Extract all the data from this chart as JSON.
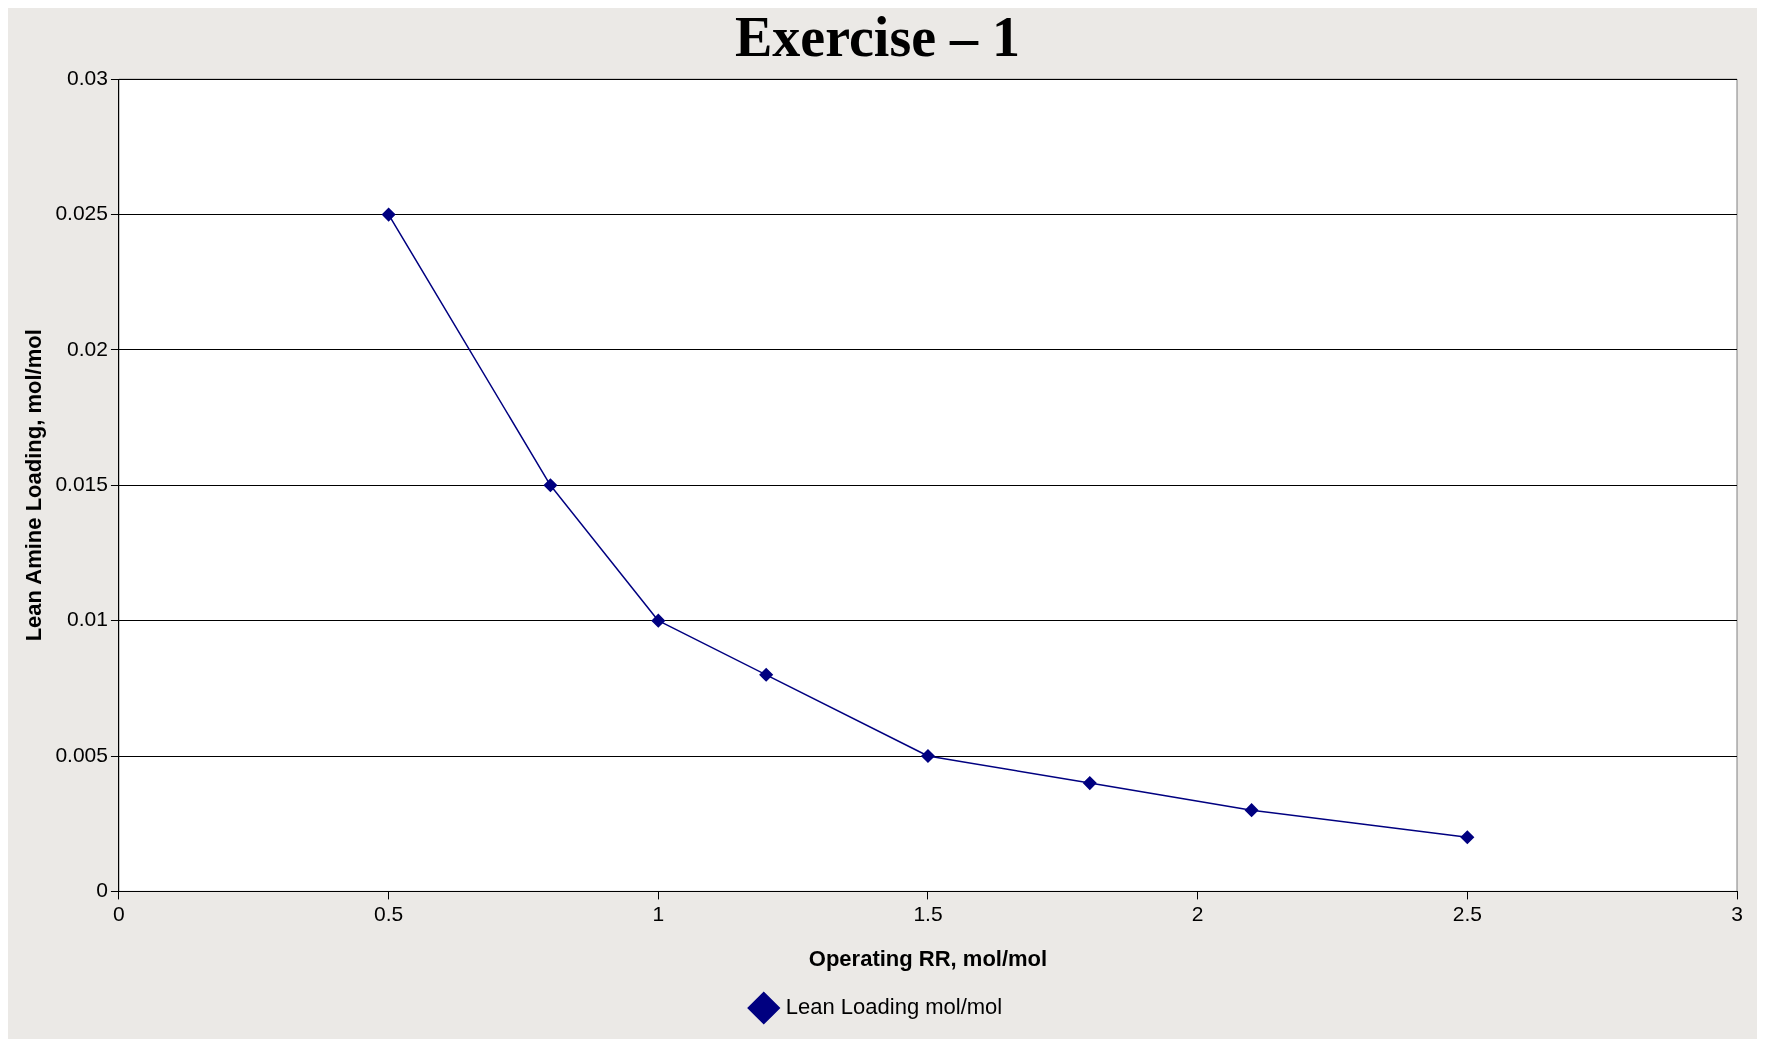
{
  "chart_data": {
    "type": "line",
    "title": "Exercise – 1",
    "xlabel": "Operating RR, mol/mol",
    "ylabel": "Lean Amine Loading, mol/mol",
    "x": [
      0.5,
      0.8,
      1,
      1.2,
      1.5,
      1.8,
      2.1,
      2.5
    ],
    "series": [
      {
        "name": "Lean Loading mol/mol",
        "color": "#000080",
        "values": [
          0.025,
          0.015,
          0.01,
          0.008,
          0.005,
          0.004,
          0.003,
          0.002
        ]
      }
    ],
    "xlim": [
      0,
      3
    ],
    "xticks": [
      0,
      0.5,
      1,
      1.5,
      2,
      2.5,
      3
    ],
    "ylim": [
      0,
      0.03
    ],
    "yticks": [
      0,
      0.005,
      0.01,
      0.015,
      0.02,
      0.025,
      0.03
    ],
    "grid": "y",
    "legend": "bottom",
    "marker": "diamond",
    "line_style": "solid"
  }
}
